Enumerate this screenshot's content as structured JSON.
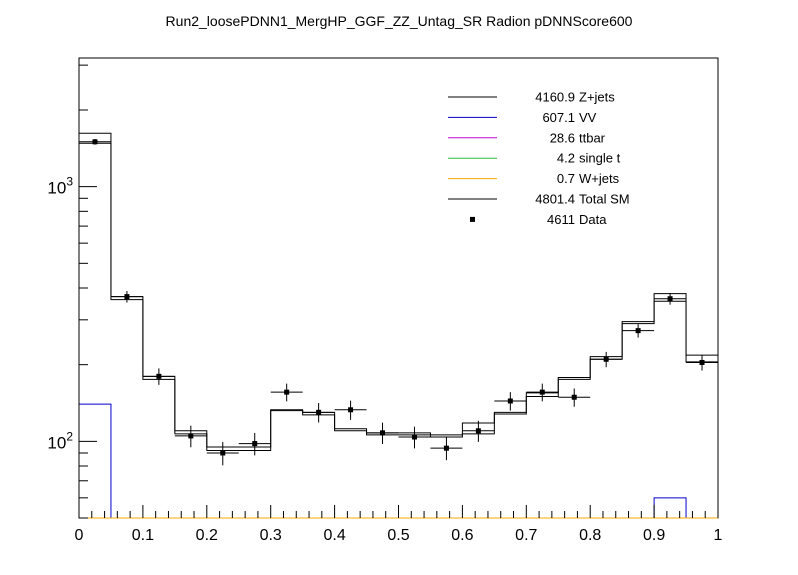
{
  "chart_data": {
    "type": "histogram",
    "title": "Run2_loosePDNN1_MergHP_GGF_ZZ_Untag_SR Radion  pDNNScore600",
    "xlabel": "",
    "ylabel": "",
    "xlim": [
      0,
      1
    ],
    "ylim": [
      50,
      3200
    ],
    "yscale": "log",
    "x_ticks": [
      "0",
      "0.1",
      "0.2",
      "0.3",
      "0.4",
      "0.5",
      "0.6",
      "0.7",
      "0.8",
      "0.9",
      "1"
    ],
    "x_tick_values": [
      0,
      0.1,
      0.2,
      0.3,
      0.4,
      0.5,
      0.6,
      0.7,
      0.8,
      0.9,
      1.0
    ],
    "y_ticks": [
      {
        "value": 100,
        "base": "10",
        "exp": "2"
      },
      {
        "value": 1000,
        "base": "10",
        "exp": "3"
      }
    ],
    "bin_edges": [
      0,
      0.05,
      0.1,
      0.15,
      0.2,
      0.25,
      0.3,
      0.35,
      0.4,
      0.45,
      0.5,
      0.55,
      0.6,
      0.65,
      0.7,
      0.75,
      0.8,
      0.85,
      0.9,
      0.95,
      1.0
    ],
    "series": [
      {
        "name": "Z+jets",
        "yield": "4160.9",
        "color": "#000000",
        "style": "step",
        "values": [
          1480,
          360,
          175,
          107,
          92,
          92,
          132,
          127,
          110,
          106,
          106,
          104,
          107,
          128,
          150,
          175,
          210,
          290,
          355,
          205
        ]
      },
      {
        "name": "VV",
        "yield": "607.1",
        "color": "#0000cc",
        "style": "step",
        "values": [
          140,
          0,
          0,
          0,
          0,
          0,
          0,
          0,
          0,
          0,
          0,
          0,
          0,
          0,
          0,
          0,
          0,
          0,
          60,
          0
        ]
      },
      {
        "name": "ttbar",
        "yield": "28.6",
        "color": "#cc00cc",
        "style": "step",
        "values": [
          0,
          0,
          0,
          0,
          0,
          0,
          0,
          0,
          0,
          0,
          0,
          0,
          0,
          0,
          0,
          0,
          0,
          0,
          0,
          0
        ]
      },
      {
        "name": "single t",
        "yield": "4.2",
        "color": "#33bb33",
        "style": "step",
        "values": [
          0,
          0,
          0,
          0,
          0,
          0,
          0,
          0,
          0,
          0,
          0,
          0,
          0,
          0,
          0,
          0,
          0,
          0,
          0,
          0
        ]
      },
      {
        "name": "W+jets",
        "yield": "0.7",
        "color": "#ffaa00",
        "style": "step",
        "values": [
          0,
          0,
          0,
          0,
          0,
          0,
          0,
          0,
          0,
          0,
          0,
          0,
          0,
          0,
          0,
          0,
          0,
          0,
          0,
          0
        ]
      },
      {
        "name": "Total SM",
        "yield": "4801.4",
        "color": "#000000",
        "style": "step",
        "values": [
          1620,
          370,
          180,
          110,
          95,
          95,
          133,
          130,
          112,
          108,
          108,
          106,
          118,
          130,
          155,
          178,
          215,
          295,
          380,
          218
        ]
      },
      {
        "name": "Data",
        "yield": "4611",
        "color": "#000000",
        "style": "points",
        "values": [
          1500,
          370,
          180,
          105,
          90,
          98,
          156,
          130,
          133,
          108,
          104,
          94,
          110,
          144,
          156,
          149,
          210,
          272,
          363,
          204
        ]
      }
    ],
    "legend": {
      "position": "top-right",
      "entries": [
        {
          "series": "Z+jets",
          "yield": "4160.9",
          "label": "Z+jets",
          "marker": "line",
          "color": "#000000"
        },
        {
          "series": "VV",
          "yield": "607.1",
          "label": "VV",
          "marker": "line",
          "color": "#0000cc"
        },
        {
          "series": "ttbar",
          "yield": "28.6",
          "label": "ttbar",
          "marker": "line",
          "color": "#cc00cc"
        },
        {
          "series": "single t",
          "yield": "4.2",
          "label": "single t",
          "marker": "line",
          "color": "#33bb33"
        },
        {
          "series": "W+jets",
          "yield": "0.7",
          "label": "W+jets",
          "marker": "line",
          "color": "#ffaa00"
        },
        {
          "series": "Total SM",
          "yield": "4801.4",
          "label": "Total SM",
          "marker": "line",
          "color": "#000000"
        },
        {
          "series": "Data",
          "yield": "4611",
          "label": "Data",
          "marker": "point",
          "color": "#000000"
        }
      ]
    }
  }
}
